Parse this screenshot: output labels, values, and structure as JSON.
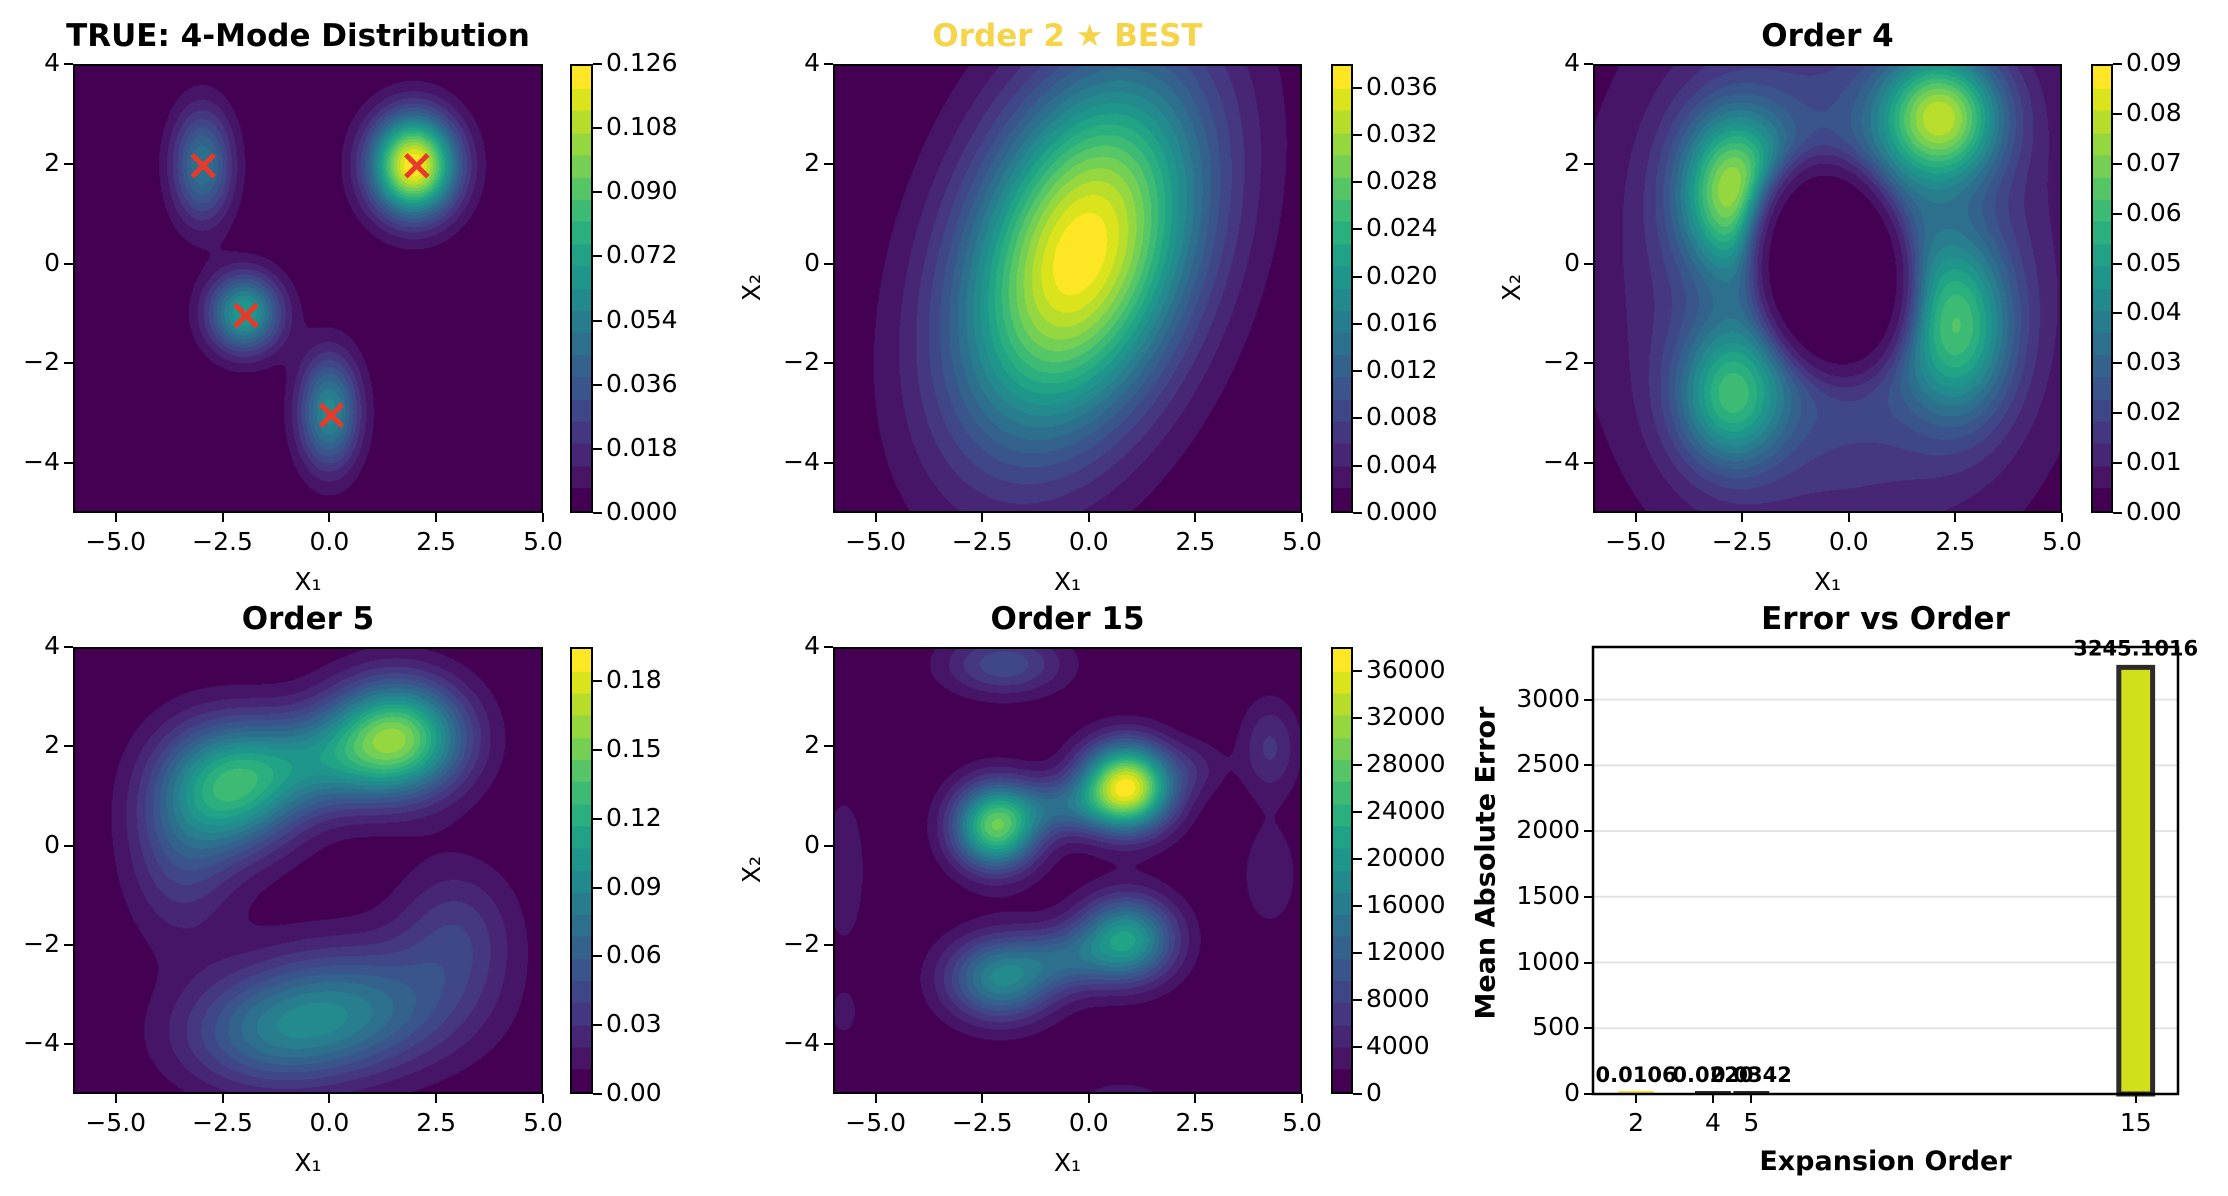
{
  "figure": {
    "colormap": "viridis",
    "marker_color": "#e8392a",
    "best_title_color": "#f5d44a"
  },
  "chart_data": [
    {
      "id": "true",
      "type": "heatmap",
      "title": "TRUE: 4-Mode Distribution",
      "xlabel": "X₁",
      "ylabel": "",
      "xlim": [
        -6,
        5
      ],
      "ylim": [
        -5,
        4
      ],
      "xticks": [
        "−5.0",
        "−2.5",
        "0.0",
        "2.5",
        "5.0"
      ],
      "xtick_values": [
        -5,
        -2.5,
        0,
        2.5,
        5
      ],
      "yticks": [
        "4",
        "2",
        "0",
        "−2",
        "−4"
      ],
      "ytick_values": [
        4,
        2,
        0,
        -2,
        -4
      ],
      "colorbar": {
        "min": 0,
        "max": 0.126,
        "ticks": [
          "0.000",
          "0.018",
          "0.036",
          "0.054",
          "0.072",
          "0.090",
          "0.108",
          "0.126"
        ],
        "tick_values": [
          0,
          0.018,
          0.036,
          0.054,
          0.072,
          0.09,
          0.108,
          0.126
        ],
        "top": 0.126
      },
      "modes": [
        {
          "x": -3,
          "y": 2,
          "peak": 0.05,
          "sx": 0.5,
          "sy": 0.8
        },
        {
          "x": 2,
          "y": 2,
          "peak": 0.126,
          "sx": 0.7,
          "sy": 0.7
        },
        {
          "x": -2,
          "y": -1,
          "peak": 0.07,
          "sx": 0.6,
          "sy": 0.55
        },
        {
          "x": 0,
          "y": -3,
          "peak": 0.06,
          "sx": 0.5,
          "sy": 0.8
        }
      ],
      "markers": [
        {
          "x": -3,
          "y": 2
        },
        {
          "x": 2,
          "y": 2
        },
        {
          "x": -2,
          "y": -1
        },
        {
          "x": 0,
          "y": -3
        }
      ]
    },
    {
      "id": "order2",
      "type": "heatmap",
      "title": "Order 2 ★ BEST",
      "title_highlight": true,
      "xlabel": "X₁",
      "ylabel": "X₂",
      "xlim": [
        -6,
        5
      ],
      "ylim": [
        -5,
        4
      ],
      "xticks": [
        "−5.0",
        "−2.5",
        "0.0",
        "2.5",
        "5.0"
      ],
      "xtick_values": [
        -5,
        -2.5,
        0,
        2.5,
        5
      ],
      "yticks": [
        "4",
        "2",
        "0",
        "−2",
        "−4"
      ],
      "ytick_values": [
        4,
        2,
        0,
        -2,
        -4
      ],
      "colorbar": {
        "min": 0,
        "max": 0.038,
        "ticks": [
          "0.000",
          "0.004",
          "0.008",
          "0.012",
          "0.016",
          "0.020",
          "0.024",
          "0.028",
          "0.032",
          "0.036"
        ],
        "tick_values": [
          0,
          0.004,
          0.008,
          0.012,
          0.016,
          0.02,
          0.024,
          0.028,
          0.032,
          0.036
        ],
        "top": 0.038
      },
      "modes": [
        {
          "x": -0.2,
          "y": 0.2,
          "peak": 0.038,
          "sx": 2.0,
          "sy": 2.6,
          "rho": 0.35
        }
      ]
    },
    {
      "id": "order4",
      "type": "heatmap",
      "title": "Order 4",
      "xlabel": "X₁",
      "ylabel": "X₂",
      "xlim": [
        -6,
        5
      ],
      "ylim": [
        -5,
        4
      ],
      "xticks": [
        "−5.0",
        "−2.5",
        "0.0",
        "2.5",
        "5.0"
      ],
      "xtick_values": [
        -5,
        -2.5,
        0,
        2.5,
        5
      ],
      "yticks": [
        "4",
        "2",
        "0",
        "−2",
        "−4"
      ],
      "ytick_values": [
        4,
        2,
        0,
        -2,
        -4
      ],
      "colorbar": {
        "min": 0,
        "max": 0.09,
        "ticks": [
          "0.00",
          "0.01",
          "0.02",
          "0.03",
          "0.04",
          "0.05",
          "0.06",
          "0.07",
          "0.08",
          "0.09"
        ],
        "tick_values": [
          0,
          0.01,
          0.02,
          0.03,
          0.04,
          0.05,
          0.06,
          0.07,
          0.08,
          0.09
        ],
        "top": 0.09
      },
      "modes": [
        {
          "x": -2.7,
          "y": 1.5,
          "peak": 0.06,
          "sx": 0.9,
          "sy": 1.1
        },
        {
          "x": 2.2,
          "y": 3.0,
          "peak": 0.065,
          "sx": 1.0,
          "sy": 0.9
        },
        {
          "x": -2.8,
          "y": -2.7,
          "peak": 0.045,
          "sx": 0.9,
          "sy": 1.0
        },
        {
          "x": 2.6,
          "y": -1.3,
          "peak": 0.045,
          "sx": 0.9,
          "sy": 1.3
        },
        {
          "x": -0.3,
          "y": 0.0,
          "peak": 0.03,
          "sx": 3.2,
          "sy": 3.6
        }
      ],
      "hole": {
        "x": -0.4,
        "y": -0.1,
        "rx": 1.9,
        "ry": 2.4,
        "rot": -0.35
      }
    },
    {
      "id": "order5",
      "type": "heatmap",
      "title": "Order 5",
      "xlabel": "X₁",
      "ylabel": "",
      "xlim": [
        -6,
        5
      ],
      "ylim": [
        -5,
        4
      ],
      "xticks": [
        "−5.0",
        "−2.5",
        "0.0",
        "2.5",
        "5.0"
      ],
      "xtick_values": [
        -5,
        -2.5,
        0,
        2.5,
        5
      ],
      "yticks": [
        "4",
        "2",
        "0",
        "−2",
        "−4"
      ],
      "ytick_values": [
        4,
        2,
        0,
        -2,
        -4
      ],
      "colorbar": {
        "min": 0,
        "max": 0.195,
        "ticks": [
          "0.00",
          "0.03",
          "0.06",
          "0.09",
          "0.12",
          "0.15",
          "0.18"
        ],
        "tick_values": [
          0,
          0.03,
          0.06,
          0.09,
          0.12,
          0.15,
          0.18
        ],
        "top": 0.195
      },
      "modes": [
        {
          "x": 1.6,
          "y": 2.2,
          "peak": 0.15,
          "sx": 1.1,
          "sy": 0.8
        },
        {
          "x": -2.3,
          "y": 1.2,
          "peak": 0.11,
          "sx": 1.1,
          "sy": 0.9
        },
        {
          "x": -0.4,
          "y": 1.7,
          "peak": 0.06,
          "sx": 1.2,
          "sy": 0.7
        },
        {
          "x": -3.5,
          "y": 0.0,
          "peak": 0.04,
          "sx": 0.9,
          "sy": 1.3
        },
        {
          "x": 0.5,
          "y": -3.3,
          "peak": 0.07,
          "sx": 1.8,
          "sy": 0.9
        },
        {
          "x": -1.5,
          "y": -3.9,
          "peak": 0.05,
          "sx": 1.5,
          "sy": 0.8
        },
        {
          "x": 3.0,
          "y": -1.8,
          "peak": 0.035,
          "sx": 1.0,
          "sy": 1.0
        }
      ]
    },
    {
      "id": "order15",
      "type": "heatmap",
      "title": "Order 15",
      "xlabel": "X₁",
      "ylabel": "X₂",
      "xlim": [
        -6,
        5
      ],
      "ylim": [
        -5,
        4
      ],
      "xticks": [
        "−5.0",
        "−2.5",
        "0.0",
        "2.5",
        "5.0"
      ],
      "xtick_values": [
        -5,
        -2.5,
        0,
        2.5,
        5
      ],
      "yticks": [
        "4",
        "2",
        "0",
        "−2",
        "−4"
      ],
      "ytick_values": [
        4,
        2,
        0,
        -2,
        -4
      ],
      "colorbar": {
        "min": 0,
        "max": 38000,
        "ticks": [
          "0",
          "4000",
          "8000",
          "12000",
          "16000",
          "20000",
          "24000",
          "28000",
          "32000",
          "36000"
        ],
        "tick_values": [
          0,
          4000,
          8000,
          12000,
          16000,
          20000,
          24000,
          28000,
          32000,
          36000
        ],
        "top": 38000
      },
      "modes": [
        {
          "x": 0.9,
          "y": 1.2,
          "peak": 37000,
          "sx": 0.75,
          "sy": 0.6
        },
        {
          "x": -2.2,
          "y": 0.4,
          "peak": 28000,
          "sx": 0.7,
          "sy": 0.6
        },
        {
          "x": -0.7,
          "y": 0.8,
          "peak": 9000,
          "sx": 0.8,
          "sy": 0.4
        },
        {
          "x": 0.9,
          "y": -1.9,
          "peak": 21000,
          "sx": 0.8,
          "sy": 0.6
        },
        {
          "x": -2.1,
          "y": -2.7,
          "peak": 17000,
          "sx": 0.9,
          "sy": 0.6
        },
        {
          "x": -0.6,
          "y": -2.3,
          "peak": 8000,
          "sx": 0.8,
          "sy": 0.45
        },
        {
          "x": -2.0,
          "y": 3.7,
          "peak": 9000,
          "sx": 1.0,
          "sy": 0.45
        },
        {
          "x": 4.3,
          "y": 2.0,
          "peak": 6000,
          "sx": 0.5,
          "sy": 0.7
        },
        {
          "x": 4.3,
          "y": -0.6,
          "peak": 3500,
          "sx": 0.5,
          "sy": 0.8
        },
        {
          "x": 2.6,
          "y": 1.6,
          "peak": 3000,
          "sx": 0.5,
          "sy": 0.4
        },
        {
          "x": -5.8,
          "y": -0.5,
          "peak": 3500,
          "sx": 0.4,
          "sy": 1.2
        },
        {
          "x": -5.8,
          "y": -3.4,
          "peak": 3000,
          "sx": 0.25,
          "sy": 0.35
        },
        {
          "x": 0.8,
          "y": -5.1,
          "peak": 3000,
          "sx": 0.8,
          "sy": 0.25
        }
      ]
    },
    {
      "id": "error",
      "type": "bar",
      "title": "Error vs Order",
      "xlabel": "Expansion Order",
      "ylabel": "Mean Absolute Error",
      "categories": [
        2,
        4,
        5,
        15
      ],
      "values": [
        0.0106,
        0.022,
        0.0342,
        3245.1016
      ],
      "value_labels": [
        "0.0106",
        "0.0220",
        "0.0342",
        "3245.1016"
      ],
      "bar_colors": [
        "#fde725",
        "#31688e",
        "#35b779",
        "#d0e11c"
      ],
      "xticks": [
        "2",
        "4",
        "5",
        "15"
      ],
      "xtick_values": [
        2,
        4,
        5,
        15
      ],
      "yticks": [
        "0",
        "500",
        "1000",
        "1500",
        "2000",
        "2500",
        "3000"
      ],
      "ytick_values": [
        0,
        500,
        1000,
        1500,
        2000,
        2500,
        3000
      ],
      "xlim": [
        0.88,
        16.1
      ],
      "ylim": [
        0,
        3400
      ],
      "grid": "y"
    }
  ]
}
